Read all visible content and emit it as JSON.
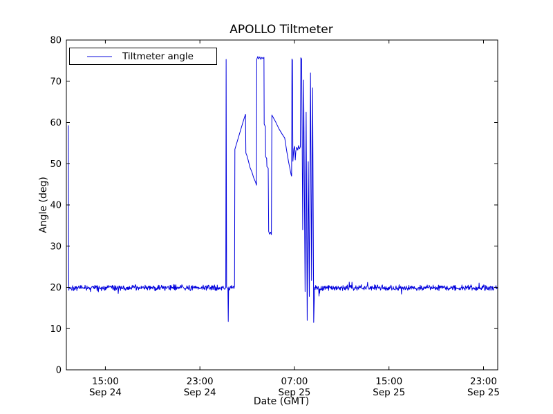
{
  "chart_data": {
    "type": "line",
    "title": "APOLLO Tiltmeter",
    "xlabel": "Date (GMT)",
    "ylabel": "Angle (deg)",
    "legend": {
      "label": "Tiltmeter angle",
      "position": "upper left"
    },
    "line_color": "#0000dd",
    "legend_line_color": "#8484ee",
    "axis_color": "#000000",
    "background_color": "#ffffff",
    "grid": false,
    "ylim": [
      0,
      80
    ],
    "yticks": [
      0,
      10,
      20,
      30,
      40,
      50,
      60,
      70,
      80
    ],
    "x_unit": "hours since Sep 24 00:00 GMT",
    "xlim": [
      11.7,
      48.2
    ],
    "xticks": [
      {
        "t": 15,
        "time": "15:00",
        "date": "Sep 24"
      },
      {
        "t": 23,
        "time": "23:00",
        "date": "Sep 24"
      },
      {
        "t": 31,
        "time": "07:00",
        "date": "Sep 25"
      },
      {
        "t": 39,
        "time": "15:00",
        "date": "Sep 25"
      },
      {
        "t": 47,
        "time": "23:00",
        "date": "Sep 25"
      }
    ],
    "series_name": "Tiltmeter angle",
    "baseline": {
      "level": 19.9,
      "noise_amplitude": 0.8,
      "sample_step_hours": 0.033,
      "segments": [
        [
          11.93,
          25.17
        ],
        [
          25.45,
          25.9
        ],
        [
          32.72,
          33.02
        ],
        [
          33.13,
          48.2
        ]
      ]
    },
    "keypoints": [
      [
        11.87,
        59.3
      ],
      [
        11.895,
        26.0
      ],
      [
        11.91,
        19.3
      ],
      [
        25.19,
        20.1
      ],
      [
        25.22,
        75.3
      ],
      [
        25.26,
        20.0
      ],
      [
        25.37,
        19.8
      ],
      [
        25.4,
        11.7
      ],
      [
        25.43,
        19.7
      ],
      [
        25.93,
        20.3
      ],
      [
        25.96,
        53.5
      ],
      [
        26.2,
        55.8
      ],
      [
        26.45,
        58.2
      ],
      [
        26.7,
        60.6
      ],
      [
        26.86,
        62.0
      ],
      [
        26.89,
        52.6
      ],
      [
        27.0,
        51.8
      ],
      [
        27.1,
        50.7
      ],
      [
        27.25,
        49.0
      ],
      [
        27.4,
        48.0
      ],
      [
        27.55,
        46.6
      ],
      [
        27.7,
        45.6
      ],
      [
        27.79,
        44.8
      ],
      [
        27.81,
        75.3
      ],
      [
        27.9,
        76.0
      ],
      [
        27.97,
        75.4
      ],
      [
        28.07,
        75.9
      ],
      [
        28.16,
        75.3
      ],
      [
        28.24,
        75.8
      ],
      [
        28.33,
        75.5
      ],
      [
        28.42,
        75.8
      ],
      [
        28.44,
        59.6
      ],
      [
        28.54,
        59.0
      ],
      [
        28.56,
        51.7
      ],
      [
        28.65,
        51.3
      ],
      [
        28.67,
        49.3
      ],
      [
        28.78,
        48.9
      ],
      [
        28.82,
        33.6
      ],
      [
        28.9,
        32.9
      ],
      [
        28.98,
        33.4
      ],
      [
        29.05,
        32.8
      ],
      [
        29.09,
        61.8
      ],
      [
        29.4,
        60.2
      ],
      [
        29.7,
        58.4
      ],
      [
        30.0,
        57.0
      ],
      [
        30.18,
        56.2
      ],
      [
        30.35,
        53.0
      ],
      [
        30.5,
        50.5
      ],
      [
        30.62,
        48.8
      ],
      [
        30.72,
        47.3
      ],
      [
        30.76,
        47.0
      ],
      [
        30.79,
        75.4
      ],
      [
        30.83,
        75.1
      ],
      [
        30.87,
        50.6
      ],
      [
        30.95,
        53.6
      ],
      [
        31.02,
        54.2
      ],
      [
        31.07,
        50.9
      ],
      [
        31.12,
        53.1
      ],
      [
        31.2,
        54.0
      ],
      [
        31.28,
        53.3
      ],
      [
        31.35,
        54.4
      ],
      [
        31.43,
        53.6
      ],
      [
        31.5,
        54.1
      ],
      [
        31.54,
        75.7
      ],
      [
        31.61,
        75.4
      ],
      [
        31.7,
        34.0
      ],
      [
        31.78,
        70.3
      ],
      [
        31.9,
        19.0
      ],
      [
        31.99,
        62.5
      ],
      [
        32.08,
        12.0
      ],
      [
        32.17,
        50.5
      ],
      [
        32.26,
        17.8
      ],
      [
        32.36,
        72.0
      ],
      [
        32.45,
        21.7
      ],
      [
        32.54,
        68.4
      ],
      [
        32.63,
        11.5
      ],
      [
        32.7,
        19.6
      ],
      [
        33.05,
        19.5
      ],
      [
        33.08,
        17.9
      ],
      [
        33.11,
        19.6
      ]
    ]
  }
}
